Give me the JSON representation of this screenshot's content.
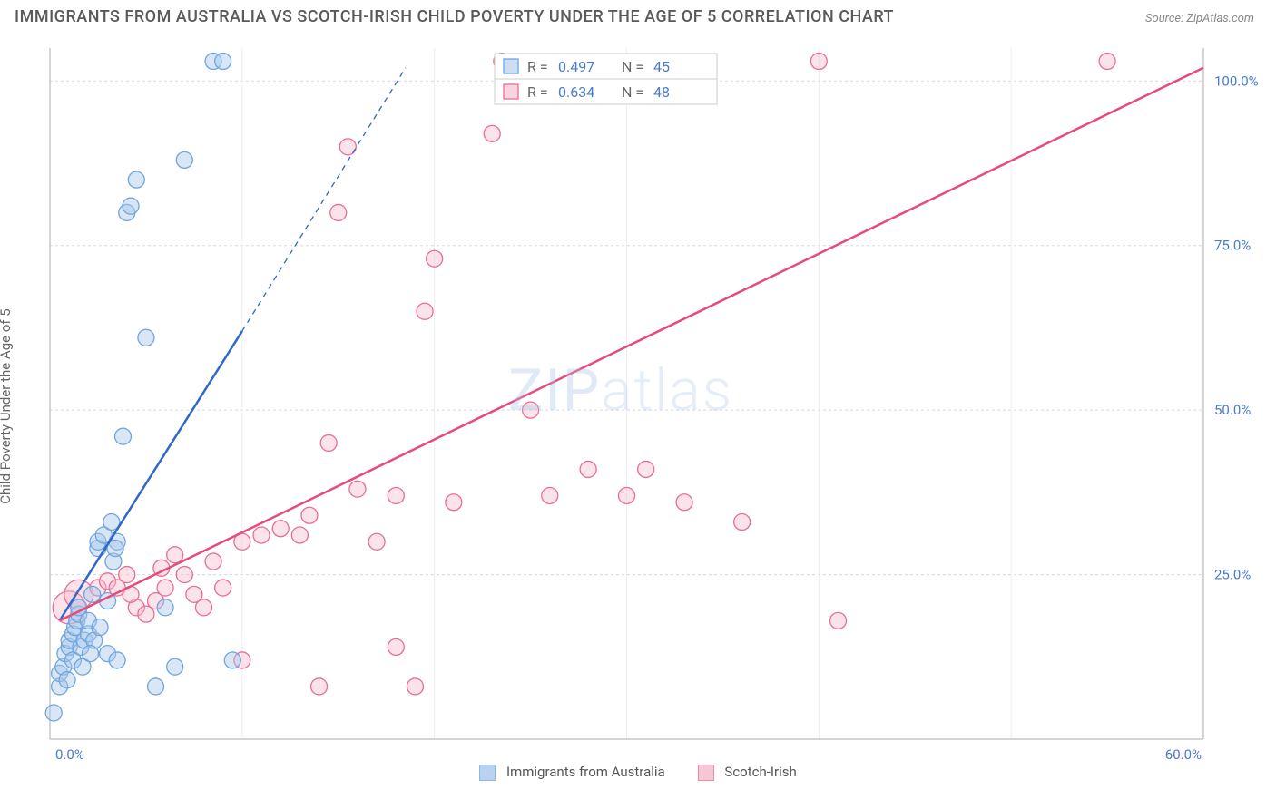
{
  "title": "IMMIGRANTS FROM AUSTRALIA VS SCOTCH-IRISH CHILD POVERTY UNDER THE AGE OF 5 CORRELATION CHART",
  "source": "Source: ZipAtlas.com",
  "watermark": "ZIPatlas",
  "ylabel": "Child Poverty Under the Age of 5",
  "chart": {
    "type": "scatter",
    "background_color": "#ffffff",
    "grid_color": "#d8d8d8",
    "axis_color": "#bbbbbb",
    "tick_label_color": "#4a7bd0",
    "xlim": [
      0,
      60
    ],
    "ylim": [
      0,
      105
    ],
    "x_ticks": [
      0.0,
      60.0
    ],
    "x_tick_labels": [
      "0.0%",
      "60.0%"
    ],
    "y_ticks": [
      25.0,
      50.0,
      75.0,
      100.0
    ],
    "y_tick_labels": [
      "25.0%",
      "50.0%",
      "75.0%",
      "100.0%"
    ],
    "x_minor_grid": [
      0,
      10,
      20,
      30,
      40,
      50,
      60
    ]
  },
  "series_a": {
    "name": "Immigrants from Australia",
    "color_fill": "#a8c8ec",
    "color_stroke": "#6fa6de",
    "fill_opacity": 0.45,
    "marker_radius": 9,
    "trend_color": "#2f68c9",
    "trend_width": 2.5,
    "trend_solid": {
      "x1": 0.5,
      "y1": 18,
      "x2": 10,
      "y2": 62
    },
    "trend_dash": {
      "x1": 10,
      "y1": 62,
      "x2": 18.5,
      "y2": 102
    },
    "R": "0.497",
    "N": "45",
    "points": [
      {
        "x": 0.2,
        "y": 4
      },
      {
        "x": 0.5,
        "y": 8
      },
      {
        "x": 0.5,
        "y": 10
      },
      {
        "x": 0.7,
        "y": 11
      },
      {
        "x": 0.8,
        "y": 13
      },
      {
        "x": 1.0,
        "y": 14
      },
      {
        "x": 1.0,
        "y": 15
      },
      {
        "x": 1.2,
        "y": 12
      },
      {
        "x": 1.2,
        "y": 16
      },
      {
        "x": 1.3,
        "y": 17
      },
      {
        "x": 1.4,
        "y": 18
      },
      {
        "x": 1.5,
        "y": 19
      },
      {
        "x": 1.5,
        "y": 20
      },
      {
        "x": 1.6,
        "y": 14
      },
      {
        "x": 1.8,
        "y": 15
      },
      {
        "x": 2.0,
        "y": 16
      },
      {
        "x": 2.0,
        "y": 18
      },
      {
        "x": 2.2,
        "y": 22
      },
      {
        "x": 2.3,
        "y": 15
      },
      {
        "x": 2.5,
        "y": 29
      },
      {
        "x": 2.5,
        "y": 30
      },
      {
        "x": 2.8,
        "y": 31
      },
      {
        "x": 3.0,
        "y": 13
      },
      {
        "x": 3.0,
        "y": 21
      },
      {
        "x": 3.2,
        "y": 33
      },
      {
        "x": 3.5,
        "y": 12
      },
      {
        "x": 3.5,
        "y": 30
      },
      {
        "x": 3.8,
        "y": 46
      },
      {
        "x": 4.0,
        "y": 80
      },
      {
        "x": 4.2,
        "y": 81
      },
      {
        "x": 4.5,
        "y": 85
      },
      {
        "x": 5.0,
        "y": 61
      },
      {
        "x": 5.5,
        "y": 8
      },
      {
        "x": 6.0,
        "y": 20
      },
      {
        "x": 6.5,
        "y": 11
      },
      {
        "x": 7.0,
        "y": 88
      },
      {
        "x": 8.5,
        "y": 103
      },
      {
        "x": 9.0,
        "y": 103
      },
      {
        "x": 9.5,
        "y": 12
      },
      {
        "x": 3.3,
        "y": 27
      },
      {
        "x": 3.4,
        "y": 29
      },
      {
        "x": 1.7,
        "y": 11
      },
      {
        "x": 2.1,
        "y": 13
      },
      {
        "x": 2.6,
        "y": 17
      },
      {
        "x": 0.9,
        "y": 9
      }
    ]
  },
  "series_b": {
    "name": "Scotch-Irish",
    "color_fill": "#f5b8ca",
    "color_stroke": "#ea6d93",
    "fill_opacity": 0.4,
    "marker_radius": 9,
    "trend_color": "#e84a7c",
    "trend_width": 2.5,
    "trend": {
      "x1": 0.5,
      "y1": 18,
      "x2": 60,
      "y2": 102
    },
    "R": "0.634",
    "N": "48",
    "points": [
      {
        "x": 1.0,
        "y": 20,
        "r": 18
      },
      {
        "x": 1.5,
        "y": 22,
        "r": 16
      },
      {
        "x": 2.5,
        "y": 23
      },
      {
        "x": 3.0,
        "y": 24
      },
      {
        "x": 3.5,
        "y": 23
      },
      {
        "x": 4.0,
        "y": 25
      },
      {
        "x": 4.5,
        "y": 20
      },
      {
        "x": 5.0,
        "y": 19
      },
      {
        "x": 5.5,
        "y": 21
      },
      {
        "x": 6.0,
        "y": 23
      },
      {
        "x": 6.5,
        "y": 28
      },
      {
        "x": 7.0,
        "y": 25
      },
      {
        "x": 8.0,
        "y": 20
      },
      {
        "x": 9.0,
        "y": 23
      },
      {
        "x": 10.0,
        "y": 12
      },
      {
        "x": 10.0,
        "y": 30
      },
      {
        "x": 11.0,
        "y": 31
      },
      {
        "x": 12.0,
        "y": 32
      },
      {
        "x": 13.0,
        "y": 31
      },
      {
        "x": 13.5,
        "y": 34
      },
      {
        "x": 14.0,
        "y": 8
      },
      {
        "x": 14.5,
        "y": 45
      },
      {
        "x": 15.0,
        "y": 80
      },
      {
        "x": 15.5,
        "y": 90
      },
      {
        "x": 16.0,
        "y": 38
      },
      {
        "x": 17.0,
        "y": 30
      },
      {
        "x": 18.0,
        "y": 14
      },
      {
        "x": 18.0,
        "y": 37
      },
      {
        "x": 19.0,
        "y": 8
      },
      {
        "x": 19.5,
        "y": 65
      },
      {
        "x": 20.0,
        "y": 73
      },
      {
        "x": 21.0,
        "y": 36
      },
      {
        "x": 23.0,
        "y": 92
      },
      {
        "x": 23.5,
        "y": 103
      },
      {
        "x": 25.0,
        "y": 50
      },
      {
        "x": 26.0,
        "y": 37
      },
      {
        "x": 28.0,
        "y": 41
      },
      {
        "x": 30.0,
        "y": 37
      },
      {
        "x": 31.0,
        "y": 41
      },
      {
        "x": 33.0,
        "y": 36
      },
      {
        "x": 36.0,
        "y": 33
      },
      {
        "x": 40.0,
        "y": 103
      },
      {
        "x": 41.0,
        "y": 18
      },
      {
        "x": 55.0,
        "y": 103
      },
      {
        "x": 5.8,
        "y": 26
      },
      {
        "x": 7.5,
        "y": 22
      },
      {
        "x": 8.5,
        "y": 27
      },
      {
        "x": 4.2,
        "y": 22
      }
    ]
  },
  "legend": {
    "series_a_label": "Immigrants from Australia",
    "series_b_label": "Scotch-Irish"
  },
  "stat_box": {
    "R_label": "R =",
    "N_label": "N ="
  }
}
